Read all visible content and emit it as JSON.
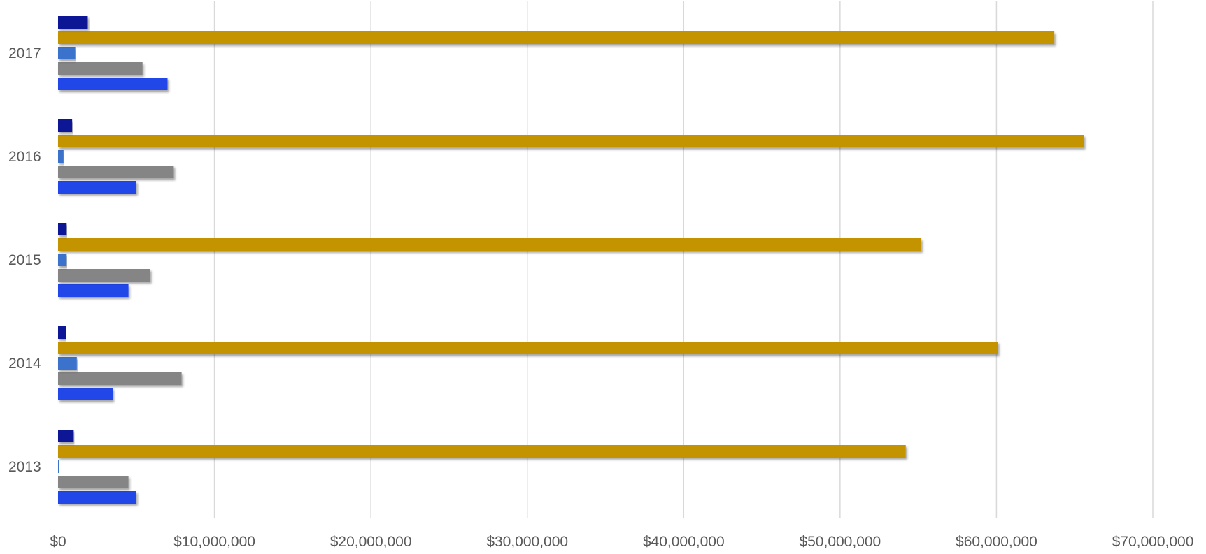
{
  "chart_data": {
    "type": "bar",
    "orientation": "horizontal",
    "categories": [
      "2013",
      "2014",
      "2015",
      "2016",
      "2017"
    ],
    "series": [
      {
        "values": [
          5000000,
          3500000,
          4500000,
          5000000,
          7000000
        ],
        "color": "#2146e8"
      },
      {
        "values": [
          4500000,
          7900000,
          5900000,
          7400000,
          5400000
        ],
        "color": "#858585"
      },
      {
        "values": [
          50000,
          1200000,
          550000,
          350000,
          1100000
        ],
        "color": "#3a73cc"
      },
      {
        "values": [
          54200000,
          60100000,
          55200000,
          65600000,
          63700000
        ],
        "color": "#c49400"
      },
      {
        "values": [
          1000000,
          500000,
          550000,
          900000,
          1900000
        ],
        "color": "#0b1594"
      }
    ],
    "xlim": [
      0,
      70000000
    ],
    "x_ticks": [
      {
        "value": 0,
        "label": "$0"
      },
      {
        "value": 10000000,
        "label": "$10,000,000"
      },
      {
        "value": 20000000,
        "label": "$20,000,000"
      },
      {
        "value": 30000000,
        "label": "$30,000,000"
      },
      {
        "value": 40000000,
        "label": "$40,000,000"
      },
      {
        "value": 50000000,
        "label": "$50,000,000"
      },
      {
        "value": 60000000,
        "label": "$60,000,000"
      },
      {
        "value": 70000000,
        "label": "$70,000,000"
      }
    ],
    "grid": "vertical",
    "legend": "none",
    "title": "",
    "xlabel": "",
    "ylabel": ""
  }
}
